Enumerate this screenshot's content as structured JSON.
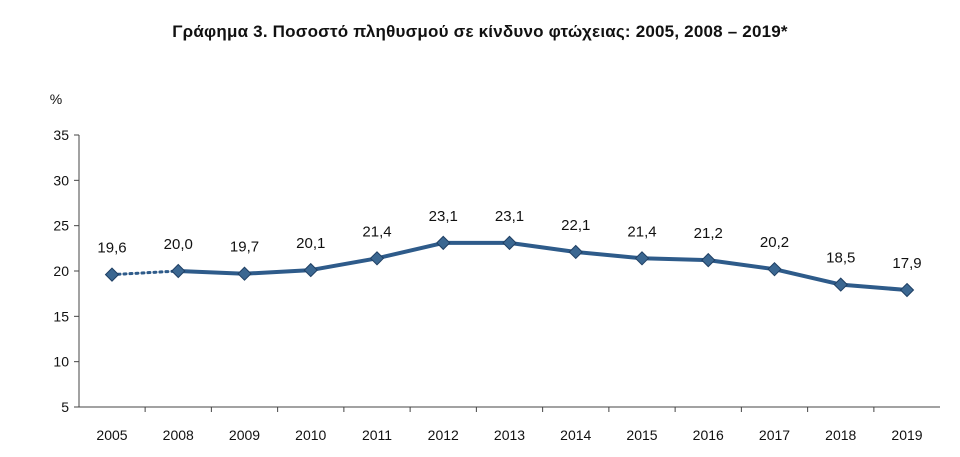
{
  "chart_data": {
    "type": "line",
    "title": "Γράφημα 3. Ποσοστό πληθυσμού σε κίνδυνο φτώχειας: 2005, 2008 – 2019*",
    "ylabel": "%",
    "xlabel": "",
    "categories": [
      "2005",
      "2008",
      "2009",
      "2010",
      "2011",
      "2012",
      "2013",
      "2014",
      "2015",
      "2016",
      "2017",
      "2018",
      "2019"
    ],
    "series": [
      {
        "values": [
          19.6,
          20.0,
          19.7,
          20.1,
          21.4,
          23.1,
          23.1,
          22.1,
          21.4,
          21.2,
          20.2,
          18.5,
          17.9
        ],
        "data_labels": [
          "19,6",
          "20,0",
          "19,7",
          "20,1",
          "21,4",
          "23,1",
          "23,1",
          "22,1",
          "21,4",
          "21,2",
          "20,2",
          "18,5",
          "17,9"
        ],
        "color": "#2e5b8a",
        "marker_color": "#3b6791",
        "dotted_segments": [
          [
            0,
            1
          ]
        ]
      }
    ],
    "ylim": [
      5,
      35
    ],
    "yticks": [
      5,
      10,
      15,
      20,
      25,
      30,
      35
    ],
    "grid": false,
    "legend": "none"
  }
}
